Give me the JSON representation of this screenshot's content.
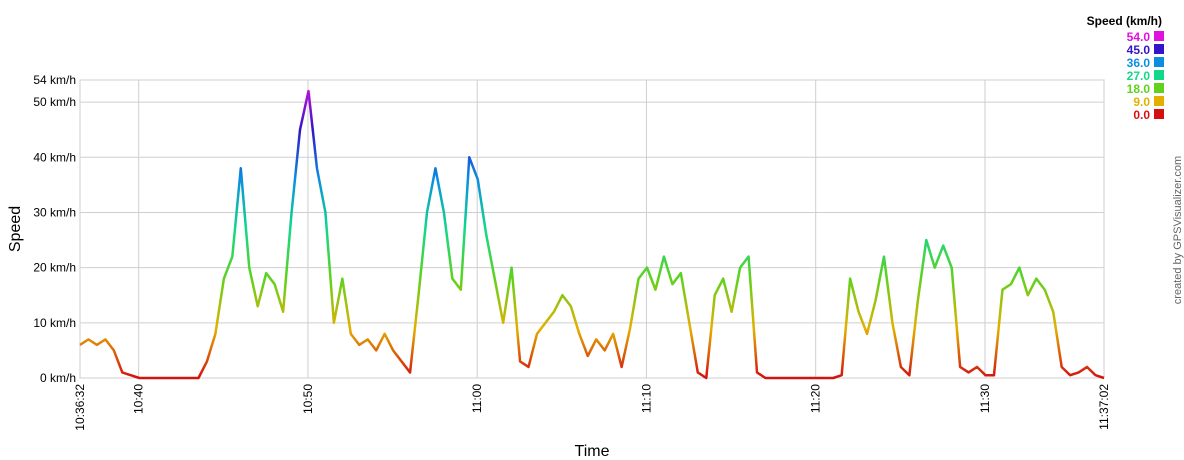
{
  "chart_data": {
    "type": "line",
    "xlabel": "Time",
    "ylabel": "Speed",
    "credit": "created by GPSVisualizer.com",
    "ylim": [
      0,
      54
    ],
    "yticks": [
      {
        "value": 0,
        "label": "0 km/h"
      },
      {
        "value": 10,
        "label": "10 km/h"
      },
      {
        "value": 20,
        "label": "20 km/h"
      },
      {
        "value": 30,
        "label": "30 km/h"
      },
      {
        "value": 40,
        "label": "40 km/h"
      },
      {
        "value": 50,
        "label": "50 km/h"
      },
      {
        "value": 54,
        "label": "54 km/h"
      }
    ],
    "xlim": [
      "10:36:32",
      "11:37:02"
    ],
    "xticks": [
      "10:36:32",
      "10:40",
      "10:50",
      "11:00",
      "11:10",
      "11:20",
      "11:30",
      "11:37:02"
    ],
    "grid": true,
    "color_scale": {
      "title": "Speed (km/h)",
      "items": [
        {
          "value": 54,
          "label": "54.0",
          "color": "#e010e0"
        },
        {
          "value": 45,
          "label": "45.0",
          "color": "#3414c8"
        },
        {
          "value": 36,
          "label": "36.0",
          "color": "#0a8fe0"
        },
        {
          "value": 27,
          "label": "27.0",
          "color": "#12d88a"
        },
        {
          "value": 18,
          "label": "18.0",
          "color": "#5ed21c"
        },
        {
          "value": 9,
          "label": "9.0",
          "color": "#e4b000"
        },
        {
          "value": 0,
          "label": "0.0",
          "color": "#d41010"
        }
      ]
    },
    "x": [
      "10:36:32",
      "10:37:02",
      "10:37:32",
      "10:38:02",
      "10:38:32",
      "10:39:02",
      "10:39:32",
      "10:40:02",
      "10:40:32",
      "10:41:02",
      "10:41:32",
      "10:42:02",
      "10:42:32",
      "10:43:02",
      "10:43:32",
      "10:44:02",
      "10:44:32",
      "10:45:02",
      "10:45:32",
      "10:46:02",
      "10:46:32",
      "10:47:02",
      "10:47:32",
      "10:48:02",
      "10:48:32",
      "10:49:02",
      "10:49:32",
      "10:50:02",
      "10:50:32",
      "10:51:02",
      "10:51:32",
      "10:52:02",
      "10:52:32",
      "10:53:02",
      "10:53:32",
      "10:54:02",
      "10:54:32",
      "10:55:02",
      "10:55:32",
      "10:56:02",
      "10:56:32",
      "10:57:02",
      "10:57:32",
      "10:58:02",
      "10:58:32",
      "10:59:02",
      "10:59:32",
      "11:00:02",
      "11:00:32",
      "11:01:02",
      "11:01:32",
      "11:02:02",
      "11:02:32",
      "11:03:02",
      "11:03:32",
      "11:04:02",
      "11:04:32",
      "11:05:02",
      "11:05:32",
      "11:06:02",
      "11:06:32",
      "11:07:02",
      "11:07:32",
      "11:08:02",
      "11:08:32",
      "11:09:02",
      "11:09:32",
      "11:10:02",
      "11:10:32",
      "11:11:02",
      "11:11:32",
      "11:12:02",
      "11:12:32",
      "11:13:02",
      "11:13:32",
      "11:14:02",
      "11:14:32",
      "11:15:02",
      "11:15:32",
      "11:16:02",
      "11:16:32",
      "11:17:02",
      "11:17:32",
      "11:18:02",
      "11:18:32",
      "11:19:02",
      "11:19:32",
      "11:20:02",
      "11:20:32",
      "11:21:02",
      "11:21:32",
      "11:22:02",
      "11:22:32",
      "11:23:02",
      "11:23:32",
      "11:24:02",
      "11:24:32",
      "11:25:02",
      "11:25:32",
      "11:26:02",
      "11:26:32",
      "11:27:02",
      "11:27:32",
      "11:28:02",
      "11:28:32",
      "11:29:02",
      "11:29:32",
      "11:30:02",
      "11:30:32",
      "11:31:02",
      "11:31:32",
      "11:32:02",
      "11:32:32",
      "11:33:02",
      "11:33:32",
      "11:34:02",
      "11:34:32",
      "11:35:02",
      "11:35:32",
      "11:36:02",
      "11:36:32",
      "11:37:02"
    ],
    "values": [
      6,
      7,
      6,
      7,
      5,
      1,
      0.5,
      0,
      0,
      0,
      0,
      0,
      0,
      0,
      0,
      3,
      8,
      18,
      22,
      38,
      20,
      13,
      19,
      17,
      12,
      30,
      45,
      52,
      38,
      30,
      10,
      18,
      8,
      6,
      7,
      5,
      8,
      5,
      3,
      1,
      15,
      30,
      38,
      30,
      18,
      16,
      40,
      36,
      26,
      18,
      10,
      20,
      3,
      2,
      8,
      10,
      12,
      15,
      13,
      8,
      4,
      7,
      5,
      8,
      2,
      9,
      18,
      20,
      16,
      22,
      17,
      19,
      10,
      1,
      0,
      15,
      18,
      12,
      20,
      22,
      1,
      0,
      0,
      0,
      0,
      0,
      0,
      0,
      0,
      0,
      0.5,
      18,
      12,
      8,
      14,
      22,
      10,
      2,
      0.5,
      14,
      25,
      20,
      24,
      20,
      2,
      1,
      2,
      0.5,
      0.5,
      16,
      17,
      20,
      15,
      18,
      16,
      12,
      2,
      0.5,
      1,
      2,
      0.5,
      0
    ]
  }
}
